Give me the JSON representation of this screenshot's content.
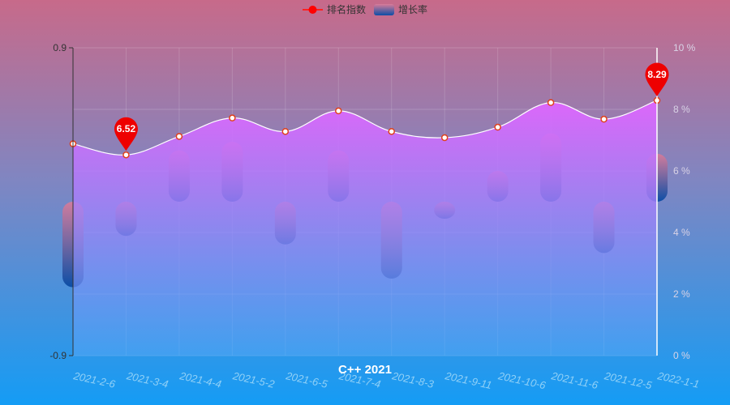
{
  "chart_data": {
    "type": "bar+line",
    "title": "C++ 2021",
    "categories": [
      "2021-2-6",
      "2021-3-4",
      "2021-4-4",
      "2021-5-2",
      "2021-6-5",
      "2021-7-4",
      "2021-8-3",
      "2021-9-11",
      "2021-10-6",
      "2021-11-6",
      "2021-12-5",
      "2022-1-1"
    ],
    "line_series": {
      "name": "排名指数",
      "values": [
        6.88,
        6.52,
        7.12,
        7.72,
        7.28,
        7.95,
        7.28,
        7.08,
        7.42,
        8.22,
        7.68,
        8.29
      ],
      "axis": "right",
      "color": "#ffffff",
      "fill_top": "#e066ff",
      "fill_bottom": "#52a6f5"
    },
    "bar_series": {
      "name": "增长率",
      "values": [
        -0.5,
        -0.2,
        0.3,
        0.35,
        -0.25,
        0.3,
        -0.45,
        -0.1,
        0.18,
        0.4,
        -0.3,
        0.28
      ],
      "axis": "left",
      "color_top": "#d97b99",
      "color_bottom": "#0b4ea6"
    },
    "markpoints": [
      {
        "label": "6.52",
        "index": 1
      },
      {
        "label": "8.29",
        "index": 11
      }
    ],
    "left_axis": {
      "min": -0.9,
      "max": 0.9,
      "ticks": [
        -0.9,
        0.9
      ]
    },
    "right_axis": {
      "min": 0,
      "max": 10,
      "ticks": [
        0,
        2,
        4,
        6,
        8,
        10
      ],
      "tick_labels": [
        "0 %",
        "2 %",
        "4 %",
        "6 %",
        "8 %",
        "10 %"
      ]
    },
    "legend_position": "top-center",
    "grid": true
  }
}
